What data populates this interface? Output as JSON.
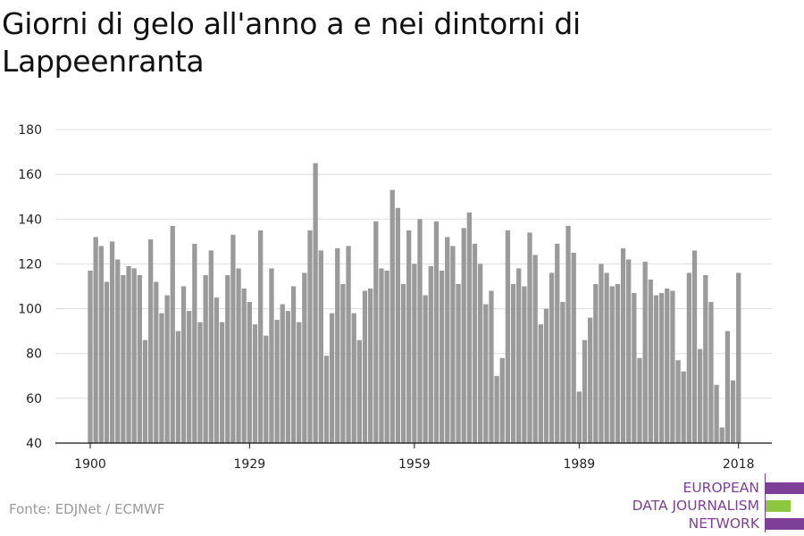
{
  "title": "Giorni di gelo all'anno a e nei dintorni di Lappeenranta",
  "source": "Fonte: EDJNet / ECMWF",
  "logo": {
    "lines": [
      "EUROPEAN",
      "DATA JOURNALISM",
      "NETWORK"
    ],
    "colors": {
      "purple": "#7d3f98",
      "green": "#8dc63f"
    }
  },
  "colors": {
    "bar": "#9a9a9a",
    "grid": "#dddddd",
    "axis": "#111111",
    "text": "#222222"
  },
  "chart_data": {
    "type": "bar",
    "title": "Giorni di gelo all'anno a e nei dintorni di Lappeenranta",
    "xlabel": "",
    "ylabel": "",
    "ylim": [
      40,
      180
    ],
    "yticks": [
      40,
      60,
      80,
      100,
      120,
      140,
      160,
      180
    ],
    "xticks": [
      1900,
      1929,
      1959,
      1989,
      2018
    ],
    "grid": true,
    "x": [
      1900,
      1901,
      1902,
      1903,
      1904,
      1905,
      1906,
      1907,
      1908,
      1909,
      1910,
      1911,
      1912,
      1913,
      1914,
      1915,
      1916,
      1917,
      1918,
      1919,
      1920,
      1921,
      1922,
      1923,
      1924,
      1925,
      1926,
      1927,
      1928,
      1929,
      1930,
      1931,
      1932,
      1933,
      1934,
      1935,
      1936,
      1937,
      1938,
      1939,
      1940,
      1941,
      1942,
      1943,
      1944,
      1945,
      1946,
      1947,
      1948,
      1949,
      1950,
      1951,
      1952,
      1953,
      1954,
      1955,
      1956,
      1957,
      1958,
      1959,
      1960,
      1961,
      1962,
      1963,
      1964,
      1965,
      1966,
      1967,
      1968,
      1969,
      1970,
      1971,
      1972,
      1973,
      1974,
      1975,
      1976,
      1977,
      1978,
      1979,
      1980,
      1981,
      1982,
      1983,
      1984,
      1985,
      1986,
      1987,
      1988,
      1989,
      1990,
      1991,
      1992,
      1993,
      1994,
      1995,
      1996,
      1997,
      1998,
      1999,
      2000,
      2001,
      2002,
      2003,
      2004,
      2005,
      2006,
      2007,
      2008,
      2009,
      2010,
      2011,
      2012,
      2013,
      2014,
      2015,
      2016,
      2017,
      2018
    ],
    "values": [
      117,
      132,
      128,
      112,
      130,
      122,
      115,
      119,
      118,
      115,
      86,
      131,
      112,
      98,
      106,
      137,
      90,
      110,
      99,
      129,
      94,
      115,
      126,
      105,
      94,
      115,
      133,
      118,
      109,
      103,
      93,
      135,
      88,
      118,
      95,
      102,
      99,
      110,
      94,
      116,
      135,
      165,
      126,
      79,
      98,
      127,
      111,
      128,
      98,
      86,
      108,
      109,
      139,
      118,
      117,
      153,
      145,
      111,
      135,
      120,
      140,
      106,
      119,
      139,
      117,
      132,
      128,
      111,
      136,
      143,
      129,
      120,
      102,
      108,
      70,
      78,
      135,
      111,
      118,
      110,
      134,
      124,
      93,
      100,
      116,
      129,
      103,
      137,
      125,
      63,
      86,
      96,
      111,
      120,
      116,
      110,
      111,
      127,
      122,
      107,
      78,
      121,
      113,
      106,
      107,
      109,
      108,
      77,
      72,
      116,
      126,
      82,
      115,
      103,
      66,
      47,
      90,
      68,
      116
    ]
  }
}
